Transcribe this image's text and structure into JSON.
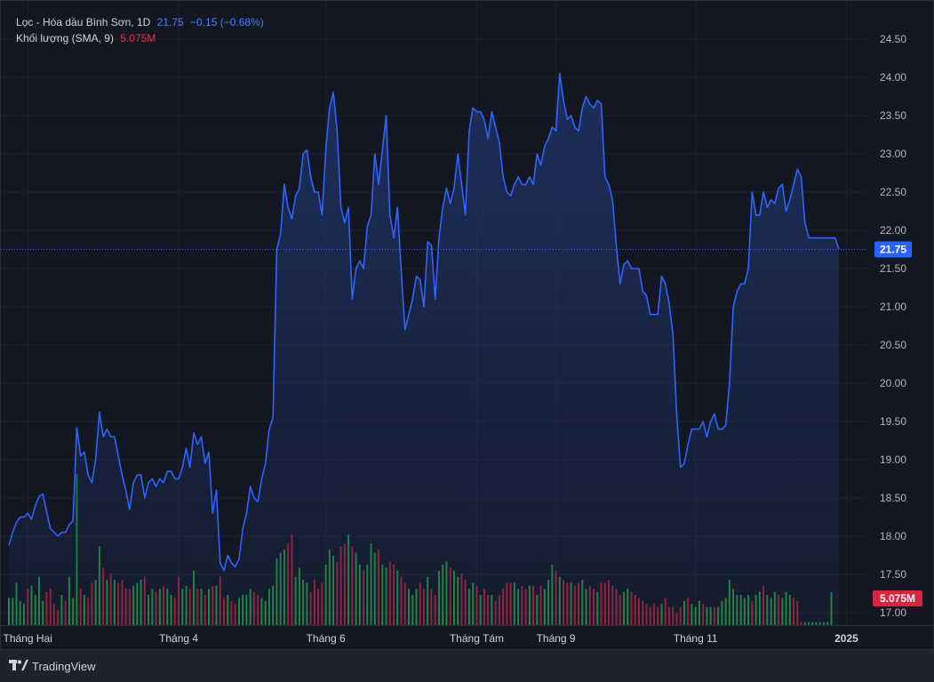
{
  "legend": {
    "symbol_line": "Lọc - Hóa dầu Bình Sơn, 1D",
    "last": "21.75",
    "change": "−0.15 (−0.68%)",
    "volume_label": "Khối lượng (SMA, 9)",
    "volume_value": "5.075M"
  },
  "branding": {
    "name": "TradingView",
    "logo_icon": "tradingview-logo-icon"
  },
  "colors": {
    "background": "#131722",
    "line": "#2f63ff",
    "area_top": "#1e3266",
    "volume_up": "#26a641",
    "volume_down": "#c2213a",
    "last_price_badge": "#2962ff",
    "volume_badge": "#d7263d"
  },
  "chart_data": {
    "type": "area",
    "title": "Lọc - Hóa dầu Bình Sơn, 1D",
    "ylim": [
      16.85,
      24.7
    ],
    "yticks": [
      17.0,
      17.5,
      18.0,
      18.5,
      19.0,
      19.5,
      20.0,
      20.5,
      21.0,
      21.5,
      22.0,
      22.5,
      23.0,
      23.5,
      24.0,
      24.5
    ],
    "ytick_labels": [
      "17.00",
      "17.50",
      "18.00",
      "18.50",
      "19.00",
      "19.50",
      "20.00",
      "20.50",
      "21.00",
      "21.50",
      "22.00",
      "22.50",
      "23.00",
      "23.50",
      "24.00",
      "24.50"
    ],
    "xtick_labels": [
      {
        "label": "Tháng Hai",
        "index": 5
      },
      {
        "label": "Tháng 4",
        "index": 45
      },
      {
        "label": "Tháng 6",
        "index": 84
      },
      {
        "label": "Tháng Tám",
        "index": 124
      },
      {
        "label": "Tháng 9",
        "index": 145
      },
      {
        "label": "Tháng 11",
        "index": 182
      },
      {
        "label": "2025",
        "index": 222,
        "bold": true
      }
    ],
    "last_price": 21.75,
    "last_price_label": "21.75",
    "volume_last_label": "5.075M",
    "grid": true,
    "series": [
      {
        "name": "Lọc - Hóa dầu Bình Sơn",
        "values": [
          17.88,
          18.05,
          18.18,
          18.25,
          18.25,
          18.3,
          18.22,
          18.4,
          18.52,
          18.55,
          18.32,
          18.1,
          18.05,
          18.0,
          18.05,
          18.05,
          18.15,
          18.2,
          19.42,
          19.05,
          19.1,
          18.8,
          18.7,
          19.0,
          19.62,
          19.3,
          19.4,
          19.3,
          19.3,
          19.05,
          18.8,
          18.6,
          18.35,
          18.7,
          18.8,
          18.8,
          18.5,
          18.7,
          18.75,
          18.65,
          18.75,
          18.7,
          18.85,
          18.85,
          18.75,
          18.75,
          18.9,
          19.15,
          18.9,
          19.35,
          19.2,
          19.3,
          18.95,
          19.1,
          18.3,
          18.6,
          17.65,
          17.55,
          17.75,
          17.65,
          17.6,
          17.7,
          18.1,
          18.3,
          18.65,
          18.5,
          18.45,
          18.75,
          18.95,
          19.4,
          19.55,
          21.75,
          21.95,
          22.6,
          22.3,
          22.15,
          22.45,
          22.55,
          23.0,
          23.05,
          22.7,
          22.5,
          22.5,
          22.2,
          23.05,
          23.6,
          23.8,
          23.3,
          22.3,
          22.1,
          22.3,
          21.1,
          21.5,
          21.6,
          21.5,
          22.05,
          22.2,
          23.0,
          22.6,
          23.05,
          23.5,
          22.2,
          21.9,
          22.3,
          21.45,
          20.7,
          20.9,
          21.1,
          21.4,
          21.35,
          21.0,
          21.85,
          21.8,
          21.1,
          21.9,
          22.3,
          22.55,
          22.35,
          22.55,
          23.0,
          22.6,
          22.2,
          23.3,
          23.6,
          23.55,
          23.55,
          23.45,
          23.2,
          23.55,
          23.35,
          23.15,
          22.7,
          22.5,
          22.45,
          22.6,
          22.7,
          22.6,
          22.6,
          22.7,
          22.6,
          23.0,
          22.85,
          23.1,
          23.2,
          23.35,
          23.3,
          24.05,
          23.7,
          23.45,
          23.5,
          23.35,
          23.3,
          23.6,
          23.75,
          23.65,
          23.6,
          23.7,
          23.65,
          22.7,
          22.6,
          22.4,
          21.8,
          21.3,
          21.55,
          21.6,
          21.5,
          21.5,
          21.5,
          21.2,
          21.15,
          20.9,
          20.9,
          20.9,
          21.4,
          21.3,
          21.05,
          20.65,
          19.6,
          18.9,
          18.95,
          19.2,
          19.4,
          19.4,
          19.4,
          19.5,
          19.3,
          19.5,
          19.6,
          19.4,
          19.4,
          19.45,
          20.0,
          21.0,
          21.2,
          21.3,
          21.3,
          21.5,
          22.5,
          22.2,
          22.2,
          22.5,
          22.3,
          22.4,
          22.35,
          22.55,
          22.6,
          22.25,
          22.4,
          22.6,
          22.8,
          22.7,
          22.1,
          21.9,
          21.9,
          21.9,
          21.9,
          21.9,
          21.9,
          21.9,
          21.9,
          21.75
        ]
      }
    ],
    "volume_series": {
      "name": "Khối lượng",
      "values": [
        0.9,
        0.9,
        1.4,
        0.8,
        0.7,
        1.2,
        1.3,
        1.0,
        1.6,
        0.8,
        1.1,
        1.2,
        0.7,
        0.5,
        1.0,
        0.8,
        1.6,
        0.9,
        5.0,
        1.2,
        1.0,
        0.9,
        1.4,
        1.5,
        2.6,
        1.9,
        1.5,
        1.7,
        1.5,
        1.4,
        1.5,
        1.2,
        1.2,
        1.3,
        1.4,
        1.5,
        1.6,
        1.0,
        1.2,
        1.1,
        1.2,
        1.3,
        1.2,
        1.0,
        0.9,
        1.6,
        1.2,
        1.3,
        1.2,
        1.8,
        1.2,
        1.2,
        1.0,
        1.2,
        1.3,
        1.3,
        1.6,
        0.9,
        1.0,
        0.8,
        0.7,
        0.9,
        1.0,
        1.0,
        1.2,
        1.1,
        1.0,
        0.9,
        0.8,
        1.2,
        1.3,
        2.2,
        2.4,
        2.5,
        2.7,
        3.0,
        1.6,
        1.9,
        1.5,
        1.4,
        1.1,
        1.5,
        1.2,
        1.4,
        2.0,
        2.5,
        2.3,
        2.1,
        2.6,
        2.7,
        3.0,
        2.6,
        2.4,
        2.0,
        1.8,
        2.0,
        2.7,
        2.4,
        2.5,
        2.0,
        1.9,
        2.1,
        2.0,
        1.8,
        1.6,
        1.4,
        1.2,
        1.0,
        1.2,
        1.4,
        1.2,
        1.6,
        1.2,
        1.0,
        1.8,
        2.0,
        2.1,
        1.9,
        1.8,
        1.6,
        1.7,
        1.5,
        1.2,
        1.4,
        1.3,
        1.0,
        1.2,
        1.0,
        1.0,
        0.8,
        1.0,
        1.2,
        1.4,
        1.4,
        1.4,
        1.2,
        1.3,
        1.2,
        1.3,
        1.3,
        1.0,
        1.3,
        1.2,
        1.5,
        2.0,
        1.8,
        1.6,
        1.5,
        1.4,
        1.4,
        1.3,
        1.4,
        1.5,
        1.2,
        1.3,
        1.2,
        1.1,
        1.4,
        1.4,
        1.5,
        1.3,
        1.2,
        1.0,
        1.1,
        1.2,
        1.1,
        1.0,
        0.9,
        0.8,
        0.7,
        0.6,
        0.7,
        0.6,
        0.7,
        0.9,
        0.6,
        0.6,
        0.4,
        0.6,
        0.8,
        0.9,
        0.7,
        0.6,
        0.8,
        0.7,
        0.6,
        0.6,
        0.6,
        0.6,
        0.8,
        0.9,
        1.5,
        1.2,
        1.0,
        1.0,
        0.9,
        1.0,
        0.8,
        1.0,
        1.1,
        1.3,
        1.0,
        0.9,
        1.1,
        1.0,
        0.9,
        1.1,
        1.0,
        0.9,
        0.8,
        0.1,
        0.1,
        0.1,
        0.1,
        0.1,
        0.1,
        0.1,
        0.1,
        1.1
      ],
      "up": [
        1,
        1,
        1,
        1,
        1,
        0,
        1,
        1,
        1,
        1,
        0,
        0,
        0,
        0,
        1,
        0,
        1,
        1,
        1,
        0,
        1,
        0,
        0,
        1,
        1,
        0,
        1,
        0,
        1,
        0,
        0,
        0,
        0,
        1,
        1,
        1,
        0,
        1,
        1,
        0,
        1,
        0,
        1,
        1,
        0,
        0,
        1,
        1,
        0,
        1,
        0,
        1,
        0,
        1,
        0,
        1,
        0,
        0,
        1,
        0,
        0,
        1,
        1,
        1,
        1,
        0,
        0,
        1,
        1,
        1,
        1,
        1,
        1,
        1,
        0,
        0,
        1,
        1,
        1,
        1,
        0,
        0,
        0,
        0,
        1,
        1,
        1,
        0,
        0,
        0,
        1,
        0,
        1,
        1,
        0,
        1,
        1,
        1,
        0,
        1,
        1,
        0,
        0,
        1,
        0,
        0,
        1,
        1,
        1,
        0,
        0,
        1,
        0,
        0,
        1,
        1,
        1,
        0,
        1,
        1,
        0,
        0,
        1,
        1,
        0,
        1,
        0,
        0,
        1,
        0,
        0,
        0,
        0,
        0,
        1,
        1,
        0,
        0,
        1,
        0,
        1,
        0,
        1,
        1,
        1,
        0,
        1,
        0,
        0,
        1,
        0,
        0,
        1,
        1,
        0,
        0,
        1,
        0,
        0,
        0,
        0,
        0,
        0,
        1,
        1,
        0,
        0,
        0,
        0,
        0,
        0,
        0,
        0,
        1,
        0,
        0,
        0,
        0,
        0,
        1,
        0,
        1,
        1,
        1,
        0,
        1,
        1,
        0,
        1,
        1,
        1,
        1,
        1,
        1,
        1,
        1,
        1,
        0,
        1,
        1,
        0,
        1,
        1,
        1,
        0,
        1,
        1,
        1,
        0,
        0,
        0,
        1,
        1,
        1,
        1,
        1,
        1,
        1,
        1,
        0
      ],
      "unit": "M"
    }
  }
}
